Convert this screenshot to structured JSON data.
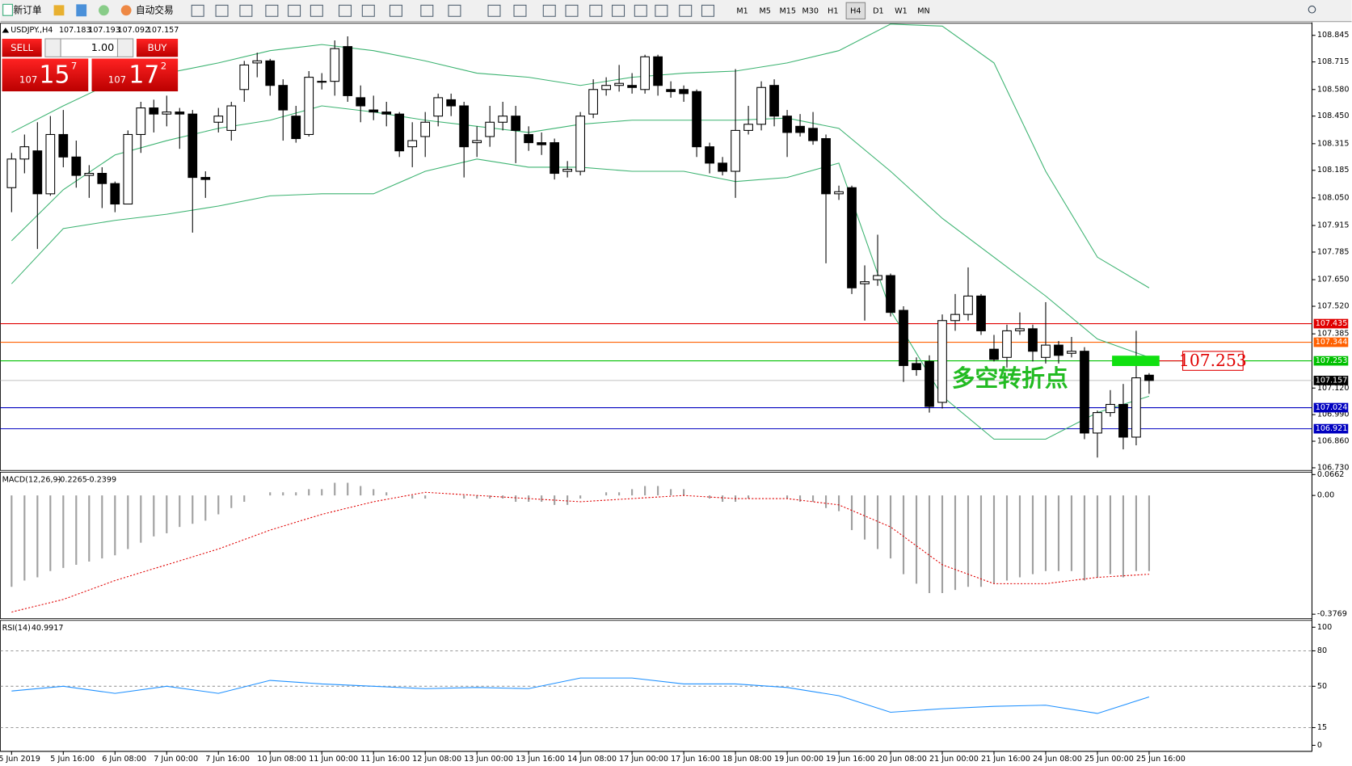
{
  "toolbar": {
    "new_order": "新订单",
    "auto_trading": "自动交易",
    "timeframes": [
      "M1",
      "M5",
      "M15",
      "M30",
      "H1",
      "H4",
      "D1",
      "W1",
      "MN"
    ],
    "active_timeframe": "H4"
  },
  "trade_panel": {
    "sell": "SELL",
    "buy": "BUY",
    "lots": "1.00",
    "sell_price": {
      "big": "107",
      "main": "15",
      "small": "7"
    },
    "buy_price": {
      "big": "107",
      "main": "17",
      "small": "2"
    }
  },
  "chart_data": [
    {
      "type": "candlestick",
      "title": "USDJPY.,H4",
      "ohlc_values": [
        107.183,
        107.193,
        107.092,
        107.157
      ],
      "open": [
        108.1,
        108.24,
        108.28,
        108.07,
        108.36,
        108.25,
        108.16,
        108.17,
        108.12,
        108.02,
        108.36,
        108.49,
        108.46,
        108.47,
        108.46,
        108.15,
        108.42,
        108.38,
        108.58,
        108.71,
        108.72,
        108.6,
        108.45,
        108.36,
        108.62,
        108.62,
        108.79,
        108.54,
        108.48,
        108.47,
        108.46,
        108.3,
        108.35,
        108.45,
        108.53,
        108.5,
        108.32,
        108.35,
        108.42,
        108.45,
        108.36,
        108.32,
        108.32,
        108.18,
        108.18,
        108.46,
        108.58,
        108.6,
        108.6,
        108.58,
        108.74,
        108.58,
        108.58,
        108.57,
        108.3,
        108.22,
        108.18,
        108.38,
        108.41,
        108.6,
        108.45,
        108.4,
        108.39,
        108.34,
        108.07,
        108.1,
        107.63,
        107.65,
        107.67,
        107.5,
        107.24,
        107.25,
        107.05,
        107.45,
        107.48,
        107.57,
        107.31,
        107.27,
        107.4,
        107.41,
        107.27,
        107.33,
        107.29,
        107.3,
        106.9,
        107.0,
        107.04,
        106.88,
        107.183
      ],
      "high": [
        108.27,
        108.36,
        108.42,
        108.45,
        108.48,
        108.33,
        108.21,
        108.2,
        108.13,
        108.38,
        108.52,
        108.53,
        108.55,
        108.49,
        108.48,
        108.18,
        108.49,
        108.52,
        108.72,
        108.76,
        108.73,
        108.63,
        108.5,
        108.67,
        108.66,
        108.82,
        108.84,
        108.6,
        108.55,
        108.52,
        108.47,
        108.42,
        108.47,
        108.56,
        108.56,
        108.52,
        108.4,
        108.5,
        108.52,
        108.5,
        108.4,
        108.37,
        108.34,
        108.23,
        108.47,
        108.63,
        108.64,
        108.7,
        108.66,
        108.75,
        108.75,
        108.62,
        108.6,
        108.58,
        108.32,
        108.25,
        108.68,
        108.5,
        108.62,
        108.63,
        108.48,
        108.46,
        108.47,
        108.36,
        108.11,
        108.11,
        107.72,
        107.87,
        107.68,
        107.52,
        107.27,
        107.28,
        107.48,
        107.58,
        107.71,
        107.58,
        107.38,
        107.43,
        107.49,
        107.43,
        107.54,
        107.35,
        107.37,
        107.32,
        107.01,
        107.11,
        107.14,
        107.4,
        107.193
      ],
      "low": [
        107.98,
        108.17,
        107.8,
        108.06,
        108.2,
        108.1,
        108.05,
        108.0,
        107.98,
        108.02,
        108.27,
        108.37,
        108.4,
        108.29,
        107.88,
        108.05,
        108.37,
        108.33,
        108.52,
        108.64,
        108.55,
        108.33,
        108.32,
        108.35,
        108.58,
        108.55,
        108.52,
        108.42,
        108.43,
        108.4,
        108.25,
        108.2,
        108.25,
        108.4,
        108.45,
        108.15,
        108.25,
        108.3,
        108.38,
        108.22,
        108.28,
        108.26,
        108.14,
        108.15,
        108.16,
        108.44,
        108.55,
        108.57,
        108.56,
        108.56,
        108.55,
        108.54,
        108.52,
        108.25,
        108.17,
        108.16,
        108.05,
        108.36,
        108.38,
        108.4,
        108.25,
        108.35,
        108.31,
        107.73,
        108.04,
        107.58,
        107.45,
        107.62,
        107.47,
        107.15,
        107.18,
        107.0,
        107.02,
        107.4,
        107.45,
        107.38,
        107.25,
        107.22,
        107.38,
        107.25,
        107.24,
        107.24,
        107.27,
        106.87,
        106.78,
        106.98,
        106.82,
        106.84,
        107.092
      ],
      "close": [
        108.24,
        108.3,
        108.07,
        108.36,
        108.25,
        108.16,
        108.17,
        108.12,
        108.02,
        108.36,
        108.49,
        108.46,
        108.47,
        108.46,
        108.15,
        108.14,
        108.45,
        108.5,
        108.7,
        108.72,
        108.6,
        108.48,
        108.34,
        108.64,
        108.62,
        108.78,
        108.55,
        108.5,
        108.47,
        108.46,
        108.28,
        108.33,
        108.42,
        108.54,
        108.5,
        108.3,
        108.33,
        108.42,
        108.45,
        108.38,
        108.32,
        108.31,
        108.17,
        108.19,
        108.45,
        108.58,
        108.6,
        108.61,
        108.59,
        108.74,
        108.6,
        108.57,
        108.56,
        108.3,
        108.22,
        108.18,
        108.38,
        108.41,
        108.59,
        108.45,
        108.37,
        108.37,
        108.33,
        108.07,
        108.08,
        107.61,
        107.64,
        107.67,
        107.49,
        107.23,
        107.21,
        107.03,
        107.45,
        107.48,
        107.57,
        107.4,
        107.26,
        107.4,
        107.41,
        107.3,
        107.33,
        107.28,
        107.3,
        106.9,
        107.0,
        107.04,
        106.88,
        107.17,
        107.157
      ],
      "series": [
        {
          "color": "#3cb371",
          "x": [
            0,
            4,
            8,
            12,
            16,
            20,
            24,
            28,
            32,
            36,
            40,
            44,
            48,
            52,
            56,
            60,
            64,
            68,
            72,
            76,
            80,
            84,
            88
          ],
          "values": [
            108.37,
            108.5,
            108.62,
            108.66,
            108.71,
            108.77,
            108.8,
            108.77,
            108.72,
            108.66,
            108.64,
            108.6,
            108.64,
            108.66,
            108.67,
            108.71,
            108.77,
            108.9,
            108.89,
            108.71,
            108.18,
            107.76,
            107.61
          ]
        },
        {
          "color": "#3cb371",
          "x": [
            0,
            4,
            8,
            12,
            16,
            20,
            24,
            28,
            32,
            36,
            40,
            44,
            48,
            52,
            56,
            60,
            64,
            68,
            72,
            76,
            80,
            84,
            88
          ],
          "values": [
            107.84,
            108.09,
            108.26,
            108.33,
            108.39,
            108.43,
            108.5,
            108.47,
            108.43,
            108.4,
            108.37,
            108.41,
            108.43,
            108.43,
            108.43,
            108.44,
            108.39,
            108.18,
            107.95,
            107.76,
            107.57,
            107.36,
            107.27
          ]
        },
        {
          "color": "#3cb371",
          "x": [
            0,
            4,
            8,
            12,
            16,
            20,
            24,
            28,
            32,
            36,
            40,
            44,
            48,
            52,
            56,
            60,
            64,
            68,
            72,
            76,
            80,
            84,
            88
          ],
          "values": [
            107.63,
            107.9,
            107.94,
            107.97,
            108.01,
            108.06,
            108.07,
            108.07,
            108.18,
            108.24,
            108.2,
            108.2,
            108.18,
            108.18,
            108.13,
            108.15,
            108.22,
            107.5,
            107.08,
            106.87,
            106.87,
            107.0,
            107.08
          ]
        }
      ],
      "levels": [
        {
          "value": 107.435,
          "color": "#e00000"
        },
        {
          "value": 107.344,
          "color": "#ff6000"
        },
        {
          "value": 107.253,
          "color": "#00c000"
        },
        {
          "value": 107.157,
          "color": "#000000"
        },
        {
          "value": 107.024,
          "color": "#0000c0"
        },
        {
          "value": 106.921,
          "color": "#0000c0"
        }
      ],
      "annotation": "多空转折点",
      "annotation_level": 107.253,
      "ylim": [
        106.717,
        108.904
      ],
      "yticks": [
        108.845,
        108.715,
        {
          "value": 108.58,
          "label": "108.580"
        },
        {
          "value": 108.45,
          "label": "108.450"
        },
        108.315,
        108.185,
        {
          "value": 108.05,
          "label": "108.050"
        },
        107.915,
        107.785,
        {
          "value": 107.65,
          "label": "107.650"
        },
        {
          "value": 107.52,
          "label": "107.520"
        },
        107.385,
        {
          "value": 107.12,
          "label": "107.120"
        },
        {
          "value": 106.99,
          "label": "106.990"
        },
        {
          "value": 106.86,
          "label": "106.860"
        },
        {
          "value": 106.73,
          "label": "106.730"
        }
      ],
      "date_labels": [
        "5 Jun 2019",
        "5 Jun 16:00",
        "6 Jun 08:00",
        "7 Jun 00:00",
        "7 Jun 16:00",
        "10 Jun 08:00",
        "11 Jun 00:00",
        "11 Jun 16:00",
        "12 Jun 08:00",
        "13 Jun 00:00",
        "13 Jun 16:00",
        "14 Jun 08:00",
        "17 Jun 00:00",
        "17 Jun 16:00",
        "18 Jun 08:00",
        "19 Jun 00:00",
        "19 Jun 16:00",
        "20 Jun 08:00",
        "21 Jun 00:00",
        "21 Jun 16:00",
        "24 Jun 08:00",
        "25 Jun 00:00",
        "25 Jun 16:00"
      ]
    },
    {
      "type": "macd",
      "title": "MACD(12,26,9)",
      "title_values": [
        -0.2265,
        -0.2399
      ],
      "color": "#a0a0a0",
      "values": [
        -0.29,
        -0.27,
        -0.26,
        -0.24,
        -0.23,
        -0.22,
        -0.21,
        -0.2,
        -0.19,
        -0.17,
        -0.15,
        -0.13,
        -0.12,
        -0.1,
        -0.09,
        -0.08,
        -0.06,
        -0.04,
        -0.02,
        0.0,
        0.01,
        0.01,
        0.01,
        0.02,
        0.02,
        0.04,
        0.04,
        0.03,
        0.02,
        0.01,
        0.0,
        -0.01,
        -0.01,
        0.0,
        0.0,
        -0.01,
        -0.01,
        -0.01,
        -0.01,
        -0.02,
        -0.02,
        -0.02,
        -0.03,
        -0.03,
        -0.01,
        0.0,
        0.01,
        0.01,
        0.02,
        0.03,
        0.03,
        0.02,
        0.02,
        0.0,
        -0.01,
        -0.02,
        -0.02,
        -0.01,
        0.0,
        0.0,
        -0.01,
        -0.02,
        -0.02,
        -0.04,
        -0.05,
        -0.11,
        -0.14,
        -0.17,
        -0.2,
        -0.25,
        -0.28,
        -0.31,
        -0.31,
        -0.3,
        -0.29,
        -0.29,
        -0.28,
        -0.27,
        -0.26,
        -0.25,
        -0.24,
        -0.24,
        -0.24,
        -0.27,
        -0.26,
        -0.25,
        -0.26,
        -0.24,
        -0.24
      ],
      "series": [
        {
          "color": "#e00000",
          "x": [
            0,
            4,
            8,
            12,
            16,
            20,
            24,
            28,
            32,
            36,
            40,
            44,
            48,
            52,
            56,
            60,
            64,
            68,
            72,
            76,
            80,
            84,
            88
          ],
          "values": [
            -0.37,
            -0.33,
            -0.27,
            -0.22,
            -0.17,
            -0.11,
            -0.06,
            -0.02,
            0.01,
            0.0,
            -0.01,
            -0.02,
            -0.01,
            0.0,
            -0.01,
            -0.01,
            -0.03,
            -0.1,
            -0.22,
            -0.28,
            -0.28,
            -0.26,
            -0.25
          ]
        }
      ],
      "ylim": [
        -0.391,
        0.0738
      ],
      "yticks": [
        0.0662,
        {
          "value": 0,
          "label": "0.00"
        },
        -0.3769
      ]
    },
    {
      "type": "line",
      "title": "RSI(14)",
      "title_values": [
        40.9917
      ],
      "series": [
        {
          "color": "#1e90ff",
          "x": [
            0,
            4,
            8,
            12,
            16,
            20,
            24,
            28,
            32,
            36,
            40,
            44,
            48,
            52,
            56,
            60,
            64,
            68,
            72,
            76,
            80,
            84,
            88
          ],
          "values": [
            46,
            50,
            44,
            50,
            44,
            55,
            52,
            50,
            48,
            49,
            48,
            57,
            57,
            52,
            52,
            49,
            42,
            28,
            31,
            33,
            34,
            27,
            40.9917
          ]
        }
      ],
      "levels": [
        80,
        50,
        15
      ],
      "ylim": [
        -5.1,
        105.8
      ],
      "yticks": [
        100,
        80,
        50,
        15,
        0
      ]
    }
  ]
}
